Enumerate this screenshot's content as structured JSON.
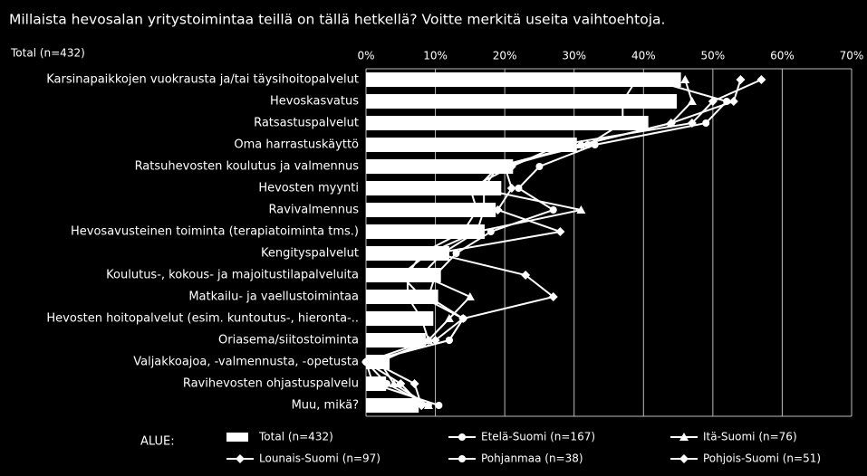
{
  "chart_data": {
    "type": "bar",
    "title": "Millaista hevosalan yritystoimintaa teillä on tällä hetkellä? Voitte merkitä useita vaihtoehtoja.",
    "subtitle": "Total (n=432)",
    "legend_title": "ALUE:",
    "categories": [
      "Karsinapaikkojen vuokrausta ja/tai täysihoitopalvelut",
      "Hevoskasvatus",
      "Ratsastuspalvelut",
      "Oma harrastuskäyttö",
      "Ratsuhevosten koulutus ja valmennus",
      "Hevosten myynti",
      "Ravivalmennus",
      "Hevosavusteinen toiminta (terapiatoiminta tms.)",
      "Kengityspalvelut",
      "Koulutus-, kokous- ja majoitustilapalveluita",
      "Matkailu- ja vaellustoimintaa",
      "Hevosten hoitopalvelut (esim. kuntoutus-, hieronta-..",
      "Oriasema/siitostoiminta",
      "Valjakkoajoa, -valmennusta, -opetusta",
      "Ravihevosten ohjastuspalvelu",
      "Muu, mikä?"
    ],
    "series": [
      {
        "name": "Total (n=432)",
        "kind": "bar",
        "color": "#ffffff",
        "values": [
          45.4,
          44.8,
          40.7,
          30.4,
          21.2,
          19.5,
          18.7,
          17.1,
          12,
          10.8,
          10.4,
          9.7,
          8.6,
          3.4,
          2.9,
          7.6
        ]
      },
      {
        "name": "Etelä-Suomi (n=167)",
        "kind": "line",
        "marker": "circle",
        "color": "#ffffff",
        "values": [
          41,
          52,
          49,
          33,
          25,
          22,
          27,
          18,
          13,
          10,
          9,
          14,
          12,
          0,
          1,
          10.5
        ]
      },
      {
        "name": "Itä-Suomi (n=76)",
        "kind": "line",
        "marker": "triangle",
        "color": "#ffffff",
        "values": [
          46,
          47,
          44,
          31,
          19,
          16,
          31,
          16,
          11,
          8,
          15,
          12,
          9,
          2,
          4,
          9
        ]
      },
      {
        "name": "Lounais-Suomi (n=97)",
        "kind": "line",
        "marker": "diamond",
        "color": "#ffffff",
        "values": [
          54,
          53,
          44,
          31,
          20,
          21,
          19,
          28,
          10,
          23,
          27,
          14,
          10,
          1,
          7,
          8
        ]
      },
      {
        "name": "Pohjanmaa (n=38)",
        "kind": "line",
        "marker": "circle",
        "color": "#ffffff",
        "values": [
          39,
          37,
          37,
          32,
          19,
          17,
          17,
          16,
          9,
          5,
          8,
          14,
          12,
          0,
          3,
          9
        ]
      },
      {
        "name": "Pohjois-Suomi (n=51)",
        "kind": "line",
        "marker": "diamond",
        "color": "#ffffff",
        "values": [
          57,
          50,
          47,
          28,
          21,
          15,
          16,
          14,
          8,
          6,
          6,
          8,
          9,
          0,
          5,
          8
        ]
      }
    ],
    "xlim": [
      0,
      70
    ],
    "xticks": [
      {
        "value": 0,
        "label": "0%"
      },
      {
        "value": 10,
        "label": "10%"
      },
      {
        "value": 20,
        "label": "20%"
      },
      {
        "value": 30,
        "label": "30%"
      },
      {
        "value": 40,
        "label": "40%"
      },
      {
        "value": 50,
        "label": "50%"
      },
      {
        "value": 60,
        "label": "60%"
      },
      {
        "value": 70,
        "label": "70%"
      }
    ],
    "grid": true
  }
}
